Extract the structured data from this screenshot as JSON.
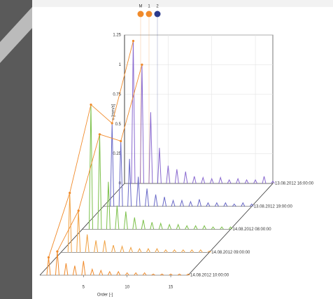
{
  "chart_data": {
    "type": "waterfall",
    "y_label": "v [mm/s]",
    "x_label": "Order [-]",
    "legend": [
      {
        "name": "M",
        "color": "#f08a2a"
      },
      {
        "name": "1",
        "color": "#f08a2a"
      },
      {
        "name": "2",
        "color": "#2b3a8c"
      }
    ],
    "x": [
      1,
      2,
      3,
      4,
      5,
      6,
      7,
      8,
      9,
      10,
      11,
      12,
      13,
      14,
      15,
      16,
      17
    ],
    "xlim": [
      0,
      17
    ],
    "xticks": [
      5,
      10,
      15
    ],
    "ylim": [
      0,
      1.25
    ],
    "yticks": [
      0,
      0.25,
      0.5,
      0.75,
      1,
      1.25
    ],
    "grid": true,
    "series": [
      {
        "name": "14.08.2012 10:00:00",
        "color": "#f08a2a",
        "values": [
          0.15,
          0.2,
          0.1,
          0.08,
          0.12,
          0.05,
          0.04,
          0.03,
          0.03,
          0.02,
          0.02,
          0.02,
          0.01,
          0.01,
          0.01,
          0.01,
          0.01
        ]
      },
      {
        "name": "14.08.2012 09:00:00",
        "color": "#f0a040",
        "values": [
          0.5,
          0.35,
          0.15,
          0.1,
          0.1,
          0.06,
          0.05,
          0.04,
          0.03,
          0.03,
          0.03,
          0.02,
          0.02,
          0.02,
          0.02,
          0.02,
          0.01
        ]
      },
      {
        "name": "14.08.2012 08:00:00",
        "color": "#7cc04a",
        "values": [
          1.05,
          0.8,
          0.4,
          0.2,
          0.15,
          0.1,
          0.08,
          0.06,
          0.05,
          0.04,
          0.04,
          0.03,
          0.03,
          0.03,
          0.02,
          0.02,
          0.02
        ]
      },
      {
        "name": "13.08.2012 19:00:00",
        "color": "#6a6ac8",
        "values": [
          0.7,
          0.55,
          0.4,
          0.25,
          0.15,
          0.1,
          0.08,
          0.05,
          0.05,
          0.04,
          0.06,
          0.03,
          0.03,
          0.03,
          0.02,
          0.03,
          0.02
        ]
      },
      {
        "name": "13.08.2012 16:00:00",
        "color": "#8a6ad0",
        "values": [
          1.2,
          1.0,
          0.6,
          0.3,
          0.15,
          0.12,
          0.1,
          0.06,
          0.05,
          0.04,
          0.05,
          0.03,
          0.04,
          0.03,
          0.03,
          0.06,
          0.02
        ]
      }
    ]
  }
}
